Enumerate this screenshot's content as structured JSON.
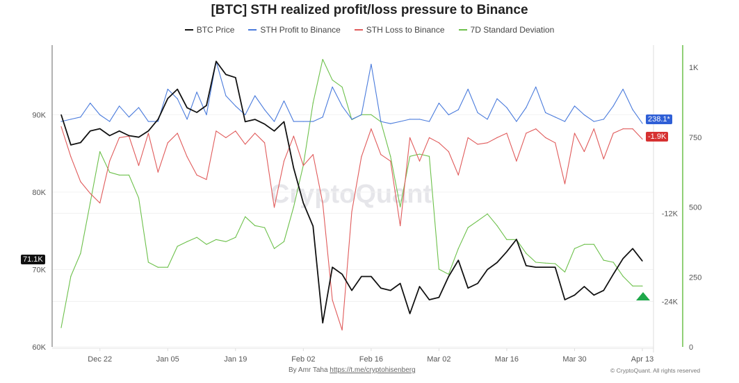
{
  "chart_data": {
    "type": "line",
    "title": "[BTC] STH realized profit/loss pressure to Binance",
    "legend_position": "top",
    "grid": true,
    "x": [
      "Dec 14",
      "Dec 16",
      "Dec 18",
      "Dec 20",
      "Dec 22",
      "Dec 24",
      "Dec 26",
      "Dec 28",
      "Dec 30",
      "Jan 01",
      "Jan 03",
      "Jan 05",
      "Jan 07",
      "Jan 09",
      "Jan 11",
      "Jan 13",
      "Jan 15",
      "Jan 17",
      "Jan 19",
      "Jan 21",
      "Jan 23",
      "Jan 25",
      "Jan 27",
      "Jan 29",
      "Jan 31",
      "Feb 02",
      "Feb 04",
      "Feb 06",
      "Feb 08",
      "Feb 10",
      "Feb 12",
      "Feb 14",
      "Feb 16",
      "Feb 18",
      "Feb 20",
      "Feb 22",
      "Feb 24",
      "Feb 26",
      "Feb 28",
      "Mar 02",
      "Mar 04",
      "Mar 06",
      "Mar 08",
      "Mar 10",
      "Mar 12",
      "Mar 14",
      "Mar 16",
      "Mar 18",
      "Mar 20",
      "Mar 22",
      "Mar 24",
      "Mar 26",
      "Mar 28",
      "Mar 30",
      "Apr 01",
      "Apr 03",
      "Apr 05",
      "Apr 07",
      "Apr 09",
      "Apr 11",
      "Apr 13"
    ],
    "x_ticks": [
      "Dec 22",
      "Jan 05",
      "Jan 19",
      "Feb 02",
      "Feb 16",
      "Mar 02",
      "Mar 16",
      "Mar 30",
      "Apr 13"
    ],
    "axes": {
      "left": {
        "ylim": [
          60000,
          99000
        ],
        "ticks": [
          60000,
          70000,
          80000,
          90000
        ],
        "tick_labels": [
          "60K",
          "70K",
          "80K",
          "90K"
        ]
      },
      "right_inner": {
        "ylim": [
          -30200,
          10900
        ],
        "ticks": [
          -12000,
          -24000
        ],
        "tick_labels": [
          "-12K",
          "-24K"
        ]
      },
      "right_outer": {
        "ylim": [
          0,
          1080
        ],
        "ticks": [
          0,
          250,
          500,
          750,
          1000
        ],
        "tick_labels": [
          "0",
          "250",
          "500",
          "750",
          "1K"
        ],
        "color": "#6cc04a"
      }
    },
    "series": [
      {
        "name": "BTC Price",
        "axis": "left",
        "color": "#111111",
        "values": [
          90000,
          86100,
          86400,
          87900,
          88200,
          87300,
          87900,
          87300,
          87100,
          87900,
          89400,
          92100,
          93300,
          90900,
          90300,
          91200,
          96900,
          95200,
          94800,
          89100,
          89400,
          88800,
          87900,
          89100,
          83100,
          78600,
          75600,
          63100,
          70300,
          69400,
          67300,
          69100,
          69100,
          67600,
          67300,
          68200,
          64300,
          67800,
          66100,
          66400,
          69100,
          71200,
          67600,
          68200,
          70000,
          70900,
          72300,
          73900,
          70500,
          70300,
          70300,
          70300,
          66100,
          66700,
          67800,
          66700,
          67300,
          69400,
          71400,
          72700,
          71100
        ]
      },
      {
        "name": "STH Profit to Binance",
        "axis": "right_inner",
        "color": "#4a7bdc",
        "values": [
          500,
          800,
          1100,
          3000,
          1400,
          500,
          2600,
          1100,
          2400,
          500,
          500,
          4900,
          3600,
          800,
          4500,
          1400,
          8700,
          4000,
          2600,
          1400,
          4000,
          2100,
          500,
          3300,
          500,
          500,
          500,
          1100,
          5200,
          2600,
          800,
          1400,
          8300,
          500,
          200,
          500,
          800,
          800,
          500,
          3000,
          1400,
          2100,
          4900,
          1700,
          800,
          3600,
          2400,
          500,
          2400,
          5200,
          1700,
          1100,
          500,
          2600,
          1400,
          500,
          800,
          2600,
          4900,
          2100,
          238.1
        ]
      },
      {
        "name": "STH Loss to Binance",
        "axis": "right_inner",
        "color": "#e05a5a",
        "values": [
          -200,
          -4300,
          -7700,
          -9300,
          -10600,
          -4900,
          -1700,
          -1500,
          -5500,
          -1100,
          -6400,
          -2400,
          -1100,
          -4300,
          -6800,
          -7400,
          -800,
          -1700,
          -800,
          -2600,
          -1100,
          -2400,
          -11200,
          -4900,
          -1500,
          -5500,
          -4000,
          -10600,
          -23800,
          -27900,
          -11800,
          -4300,
          -500,
          -4000,
          -4900,
          -13700,
          -1700,
          -4900,
          -1700,
          -2400,
          -3600,
          -6800,
          -1700,
          -2600,
          -2400,
          -1700,
          -1100,
          -4900,
          -1100,
          -500,
          -1700,
          -2400,
          -8000,
          -1100,
          -3600,
          -500,
          -4600,
          -1100,
          -500,
          -500,
          -1900
        ]
      },
      {
        "name": "7D Standard Deviation",
        "axis": "right_outer",
        "color": "#6cc04a",
        "values": [
          69,
          253,
          335,
          516,
          699,
          625,
          615,
          615,
          533,
          303,
          285,
          285,
          360,
          377,
          392,
          367,
          384,
          377,
          392,
          466,
          434,
          427,
          352,
          377,
          501,
          650,
          873,
          1029,
          955,
          930,
          813,
          831,
          831,
          806,
          682,
          501,
          682,
          690,
          682,
          278,
          260,
          352,
          427,
          451,
          476,
          434,
          384,
          384,
          335,
          303,
          300,
          298,
          268,
          352,
          367,
          367,
          310,
          303,
          253,
          218,
          218
        ]
      }
    ],
    "annotations": {
      "btc_last": "71.1K",
      "profit_last": "238.1*",
      "loss_last": "-1.9K",
      "watermark": "CryptoQuant"
    }
  },
  "footer": {
    "by": "By Amr Taha",
    "link": "https://t.me/cryptohisenberg",
    "copyright": "© CryptoQuant. All rights reserved"
  }
}
